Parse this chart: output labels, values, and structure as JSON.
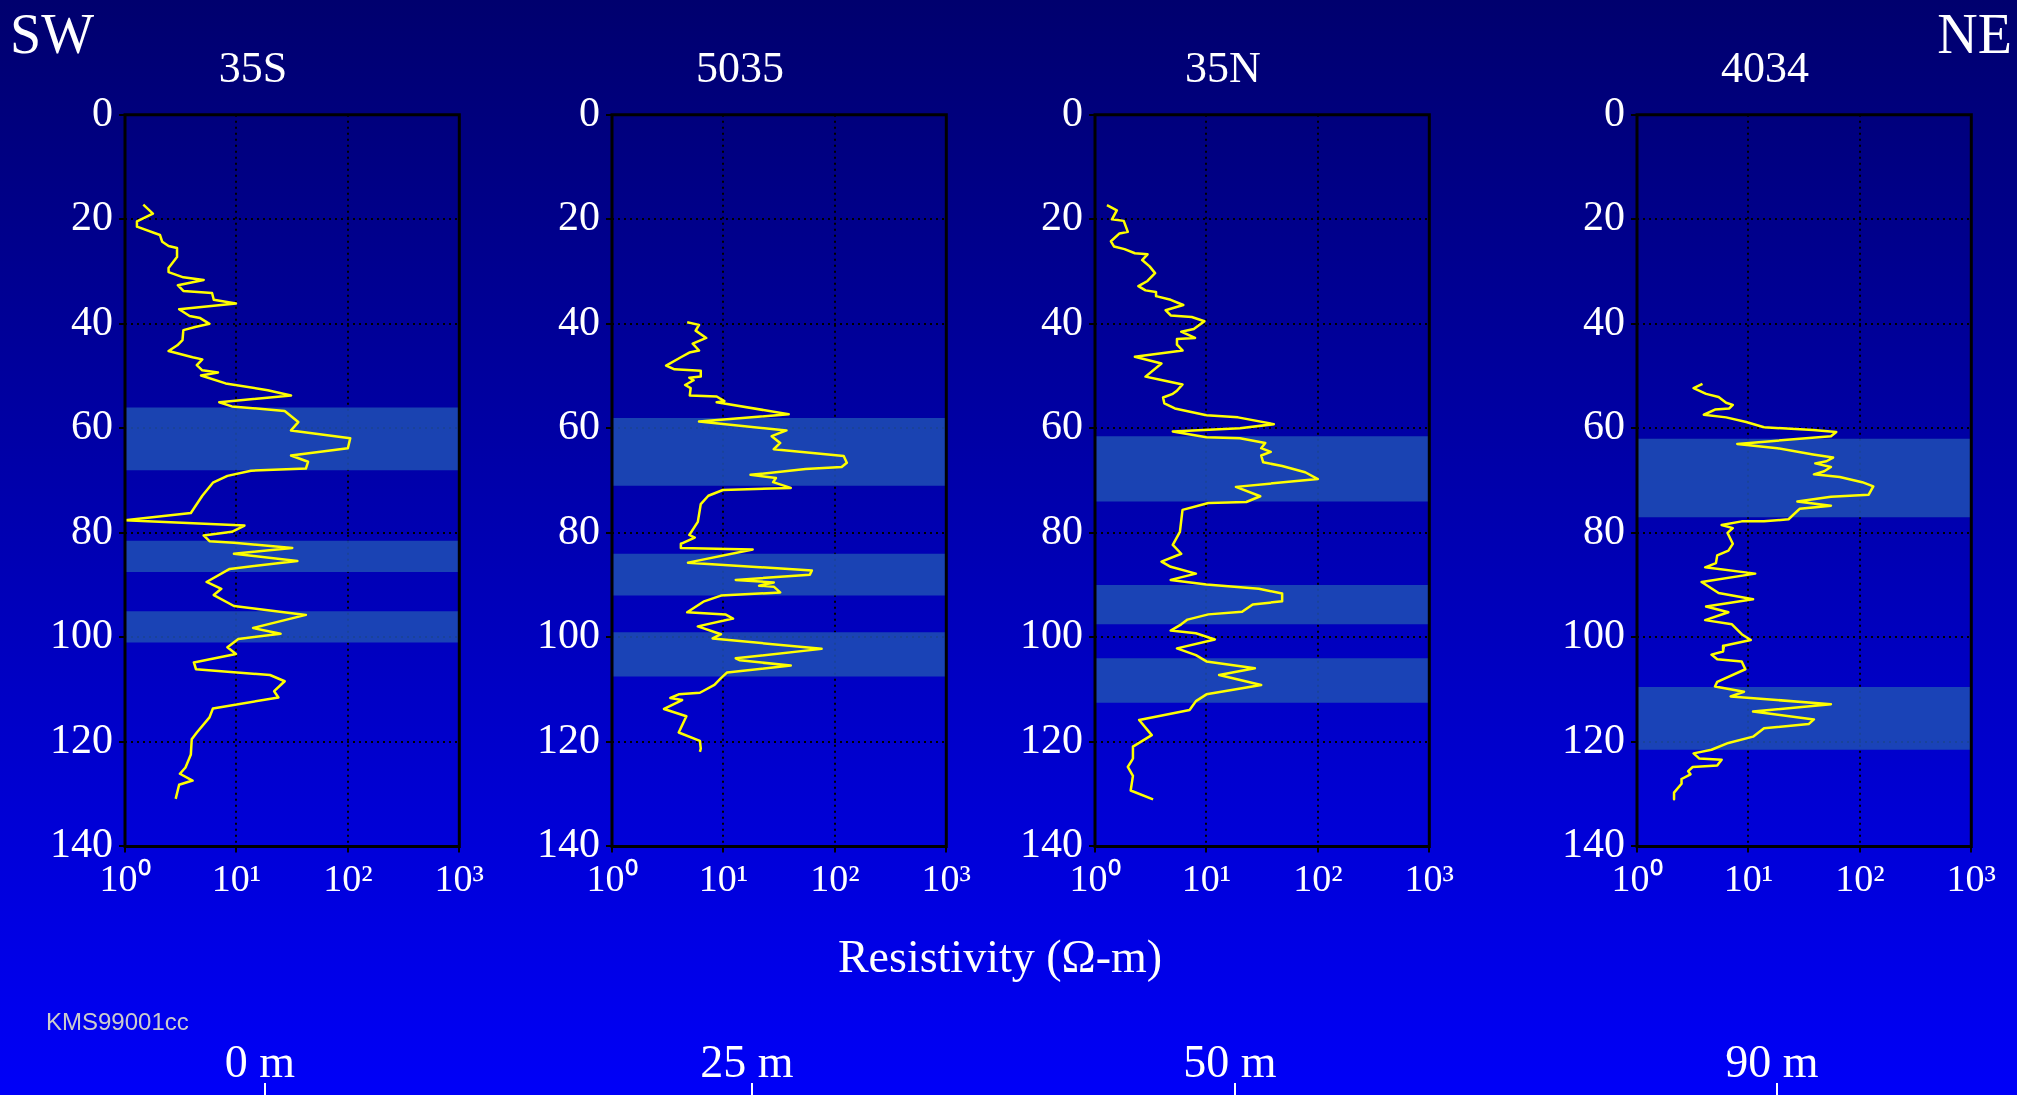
{
  "chart_data": [
    {
      "type": "line",
      "title": "35S",
      "xlim": [
        1,
        1000
      ],
      "xticks": [
        {
          "value": 1,
          "label": "10⁰"
        },
        {
          "value": 10,
          "label": "10¹"
        },
        {
          "value": 100,
          "label": "10²"
        },
        {
          "value": 1000,
          "label": "10³"
        }
      ],
      "ylim": [
        140,
        0
      ],
      "yticks": [
        0,
        20,
        40,
        60,
        80,
        100,
        120,
        140
      ],
      "log": "x",
      "grid": true,
      "bands": [
        {
          "axis": "y",
          "from": 56,
          "to": 68,
          "color": "#1f4fb4"
        },
        {
          "axis": "y",
          "from": 81.5,
          "to": 87.5,
          "color": "#1f4fb4"
        },
        {
          "axis": "y",
          "from": 95,
          "to": 101,
          "color": "#1f4fb4"
        }
      ],
      "annotations": [
        "SW",
        "KMS99001cc",
        "0 m"
      ],
      "series": [
        {
          "color": "#ffff00",
          "x": [
            1.46,
            1.78,
            1.28,
            1.28,
            2.06,
            2.16,
            2.46,
            2.93,
            2.93,
            2.46,
            2.46,
            3.34,
            5.08,
            2.98,
            3.34,
            6.04,
            6.26,
            9.9,
            3.06,
            3.8,
            4.73,
            5.73,
            4.26,
            3.34,
            3.28,
            2.95,
            2.46,
            4.04,
            4.94,
            4.41,
            4.94,
            6.83,
            4.81,
            8.0,
            19.1,
            30.9,
            7.01,
            9.1,
            27.1,
            35.9,
            30.9,
            105,
            100,
            30.9,
            43.9,
            42,
            13.5,
            8.3,
            6.15,
            4.94,
            3.9,
            1,
            11.8,
            9.1,
            5.08,
            5.73,
            9.5,
            31.7,
            9.5,
            35.2,
            8.7,
            5.39,
            7.32,
            6.26,
            9.5,
            42,
            14.1,
            24.9,
            10.4,
            8.3,
            9.9,
            4.15,
            4.34,
            20,
            27.1,
            21.8,
            23.8,
            6.15,
            5.73,
            4.41,
            3.97,
            3.9,
            3.49,
            3.11,
            4.04,
            3.06,
            2.85
          ],
          "values": [
            17.2,
            18.9,
            20.4,
            21.4,
            23.0,
            24.3,
            25.1,
            25.5,
            27.2,
            29.3,
            30.1,
            31.1,
            31.6,
            32.6,
            33.7,
            34.1,
            35.4,
            36.1,
            37.2,
            38.5,
            38.9,
            40.0,
            40.6,
            41.2,
            43.1,
            44.1,
            45.2,
            46.4,
            46.8,
            47.9,
            48.9,
            49.3,
            49.9,
            51.4,
            52.7,
            53.7,
            55.0,
            55.8,
            56.7,
            58.8,
            60.4,
            61.9,
            63.8,
            65.2,
            66.4,
            67.7,
            68.1,
            69.1,
            70.4,
            72.9,
            76.2,
            77.6,
            78.6,
            79.8,
            80.5,
            81.6,
            81.9,
            82.9,
            84.0,
            85.4,
            86.9,
            89.4,
            90.7,
            91.9,
            94.0,
            95.7,
            98.2,
            99.3,
            100.3,
            101.9,
            103.2,
            104.8,
            106.1,
            107.2,
            108.4,
            110.3,
            111.5,
            113.6,
            115.3,
            118.2,
            119.5,
            122.4,
            124.9,
            126.1,
            127.4,
            128.2,
            130.9
          ]
        }
      ]
    },
    {
      "type": "line",
      "title": "5035",
      "xlabel": "Resistivity (Ω-m)",
      "xlim": [
        1,
        1000
      ],
      "xticks": [
        {
          "value": 1,
          "label": "10⁰"
        },
        {
          "value": 10,
          "label": "10¹"
        },
        {
          "value": 100,
          "label": "10²"
        },
        {
          "value": 1000,
          "label": "10³"
        }
      ],
      "ylim": [
        140,
        0
      ],
      "yticks": [
        0,
        20,
        40,
        60,
        80,
        100,
        120,
        140
      ],
      "log": "x",
      "grid": true,
      "bands": [
        {
          "axis": "y",
          "from": 58,
          "to": 71,
          "color": "#1f4fb4"
        },
        {
          "axis": "y",
          "from": 84,
          "to": 92,
          "color": "#1f4fb4"
        },
        {
          "axis": "y",
          "from": 99,
          "to": 107.5,
          "color": "#1f4fb4"
        }
      ],
      "annotations": [
        "25 m"
      ],
      "series": [
        {
          "color": "#ffff00",
          "x": [
            4.73,
            6.04,
            5.63,
            7.01,
            5.3,
            6.04,
            4.94,
            4.15,
            3.06,
            3.64,
            6.26,
            6.26,
            4.94,
            5.4,
            4.53,
            5.08,
            4.99,
            8.7,
            10.2,
            8.7,
            38.5,
            6.04,
            36.8,
            27.1,
            32.3,
            28.3,
            120,
            128,
            115,
            54.6,
            17.5,
            29.6,
            27.9,
            40.2,
            9.9,
            7.32,
            6.26,
            5.89,
            4.94,
            5.53,
            4.15,
            4.15,
            18.3,
            4.81,
            62.2,
            59.6,
            12.9,
            28.3,
            20.9,
            28.3,
            32.3,
            9.5,
            6.71,
            4.73,
            10.4,
            12.2,
            5.89,
            9.5,
            8.0,
            76,
            12.9,
            14.1,
            40.2,
            10.8,
            9.5,
            8.3,
            6.15,
            3.97,
            3.34,
            4.26,
            2.93,
            4.65,
            3.97,
            6.15,
            6.26,
            6.15
          ],
          "values": [
            39.7,
            40.2,
            41.3,
            42.7,
            43.8,
            45.1,
            45.5,
            46.4,
            48.0,
            48.7,
            49.0,
            50.1,
            50.3,
            50.8,
            51.7,
            52.3,
            53.7,
            53.9,
            54.8,
            55.0,
            57.3,
            58.7,
            60.4,
            61.5,
            62.8,
            64.0,
            65.3,
            66.6,
            67.4,
            67.8,
            68.9,
            69.5,
            70.3,
            71.4,
            71.8,
            72.9,
            74.5,
            77.9,
            80.4,
            80.9,
            82.1,
            82.9,
            83.2,
            85.7,
            87.2,
            88.0,
            89.0,
            89.5,
            90.1,
            90.3,
            91.4,
            92.0,
            93.1,
            95.2,
            95.6,
            96.4,
            97.9,
            99.4,
            100.2,
            102.2,
            104.0,
            104.4,
            105.4,
            106.7,
            107.8,
            109.1,
            110.6,
            110.9,
            111.6,
            112.0,
            113.7,
            115.1,
            118.2,
            119.8,
            121.3,
            121.9
          ]
        }
      ]
    },
    {
      "type": "line",
      "title": "35N",
      "xlim": [
        1,
        1000
      ],
      "xticks": [
        {
          "value": 1,
          "label": "10⁰"
        },
        {
          "value": 10,
          "label": "10¹"
        },
        {
          "value": 100,
          "label": "10²"
        },
        {
          "value": 1000,
          "label": "10³"
        }
      ],
      "ylim": [
        140,
        0
      ],
      "yticks": [
        0,
        20,
        40,
        60,
        80,
        100,
        120,
        140
      ],
      "log": "x",
      "grid": true,
      "bands": [
        {
          "axis": "y",
          "from": 61.5,
          "to": 74,
          "color": "#1f4fb4"
        },
        {
          "axis": "y",
          "from": 90,
          "to": 97.5,
          "color": "#1f4fb4"
        },
        {
          "axis": "y",
          "from": 104,
          "to": 112.5,
          "color": "#1f4fb4"
        }
      ],
      "annotations": [
        "50 m"
      ],
      "series": [
        {
          "color": "#ffff00",
          "x": [
            1.28,
            1.57,
            1.42,
            1.81,
            1.97,
            1.66,
            1.39,
            1.48,
            1.84,
            2.28,
            2.96,
            2.65,
            3.09,
            3.46,
            2.96,
            2.45,
            2.84,
            3.53,
            3.53,
            4.78,
            6.2,
            4.3,
            4.78,
            7.38,
            9.6,
            7.7,
            5.94,
            7.9,
            5.44,
            5.44,
            6.1,
            2.28,
            3.95,
            2.84,
            3.85,
            6.1,
            5.44,
            4.99,
            4.08,
            4.19,
            5.21,
            10.0,
            19.2,
            40.2,
            20,
            4.99,
            10.0,
            20,
            33.7,
            31,
            37.8,
            31,
            32.3,
            47.8,
            77,
            100,
            18.4,
            30.4,
            22.8,
            10.4,
            6.1,
            5.78,
            4.99,
            5.94,
            3.95,
            4.78,
            8.05,
            4.78,
            10.0,
            29.6,
            47.8,
            47.8,
            26,
            20.9,
            10.4,
            6.76,
            5.94,
            4.78,
            8.05,
            11.9,
            5.44,
            8.05,
            10.0,
            27.2,
            13,
            31,
            10.0,
            8.05,
            7.06,
            2.49,
            3.23,
            2.19,
            2.19,
            1.97,
            2.19,
            2.09,
            3.32
          ],
          "values": [
            17.3,
            18.3,
            20.0,
            20.3,
            22.4,
            22.7,
            24.2,
            25.2,
            25.7,
            26.5,
            26.7,
            27.8,
            29.0,
            30.3,
            31.8,
            32.8,
            33.6,
            33.9,
            34.7,
            35.4,
            36.4,
            37.4,
            38.4,
            38.7,
            39.5,
            41.0,
            41.5,
            42.7,
            42.9,
            44.0,
            45.1,
            46.3,
            47.6,
            50.1,
            50.7,
            51.6,
            52.8,
            53.4,
            54.1,
            55.2,
            56.2,
            57.5,
            57.9,
            59.2,
            60.0,
            60.6,
            61.7,
            61.9,
            62.8,
            63.8,
            64.5,
            65.2,
            66.5,
            67.2,
            68.4,
            69.7,
            71.2,
            73.0,
            74.1,
            74.3,
            75.6,
            79.8,
            82.3,
            84.0,
            85.5,
            86.5,
            87.8,
            89.0,
            89.9,
            90.7,
            91.6,
            93.1,
            93.7,
            95.1,
            95.6,
            96.6,
            97.5,
            98.7,
            99.2,
            100.4,
            102.1,
            103.4,
            104.6,
            105.9,
            107.2,
            109.1,
            110.9,
            112.2,
            113.9,
            115.8,
            118.7,
            120.9,
            123.2,
            124.8,
            126.5,
            129.3,
            131.0
          ]
        }
      ]
    },
    {
      "type": "line",
      "title": "4034",
      "xlim": [
        1,
        1000
      ],
      "xticks": [
        {
          "value": 1,
          "label": "10⁰"
        },
        {
          "value": 10,
          "label": "10¹"
        },
        {
          "value": 100,
          "label": "10²"
        },
        {
          "value": 1000,
          "label": "10³"
        }
      ],
      "ylim": [
        140,
        0
      ],
      "yticks": [
        0,
        20,
        40,
        60,
        80,
        100,
        120,
        140
      ],
      "log": "x",
      "grid": true,
      "bands": [
        {
          "axis": "y",
          "from": 62,
          "to": 77,
          "color": "#1f4fb4"
        },
        {
          "axis": "y",
          "from": 109.5,
          "to": 121.5,
          "color": "#1f4fb4"
        }
      ],
      "annotations": [
        "NE",
        "90 m"
      ],
      "series": [
        {
          "color": "#ffff00",
          "x": [
            3.87,
            3.22,
            4.17,
            5.4,
            6.31,
            7.24,
            6.73,
            5.01,
            3.98,
            6.31,
            9.55,
            13.8,
            38,
            61.4,
            55,
            7.94,
            18.2,
            38,
            57.5,
            50.1,
            39.8,
            55,
            47.9,
            38.7,
            66,
            105,
            132,
            120,
            55,
            27.5,
            55,
            28.8,
            22.9,
            13.8,
            8.7,
            5.75,
            7.24,
            6.49,
            7.24,
            6.61,
            5.25,
            5.11,
            4.09,
            11.5,
            3.8,
            5.4,
            11.0,
            4.17,
            6.61,
            4.09,
            7.11,
            8.7,
            10.5,
            6.03,
            5.92,
            4.66,
            5.25,
            8.7,
            9.38,
            5.25,
            5.01,
            9.12,
            6.92,
            55,
            11.0,
            38.7,
            34.7,
            13.8,
            11.0,
            6.61,
            4.66,
            3.22,
            3.63,
            5.75,
            5.25,
            3.16,
            2.88,
            3.02,
            2.51,
            2.51,
            2.15,
            2.15
          ],
          "values": [
            51.5,
            52.3,
            53.4,
            54.0,
            55.1,
            55.5,
            56.2,
            56.4,
            57.4,
            57.9,
            58.8,
            59.8,
            60.3,
            60.7,
            61.5,
            63.0,
            63.8,
            65.0,
            65.6,
            66.3,
            66.7,
            67.4,
            68.2,
            68.8,
            69.3,
            70.3,
            71.1,
            72.7,
            73.1,
            74.0,
            74.8,
            75.4,
            77.4,
            77.8,
            77.8,
            78.5,
            79.1,
            80.0,
            82.1,
            83.4,
            84.3,
            85.8,
            86.6,
            87.8,
            89.4,
            91.5,
            92.7,
            94.1,
            95.2,
            96.7,
            97.5,
            99.4,
            100.5,
            101.6,
            102.7,
            103.3,
            104.2,
            104.6,
            106.1,
            108.5,
            109.4,
            110.4,
            111.3,
            112.8,
            114.2,
            115.7,
            116.6,
            117.4,
            119.0,
            120.2,
            121.5,
            122.2,
            123.2,
            123.4,
            124.5,
            124.8,
            125.6,
            126.2,
            127.1,
            128.0,
            129.7,
            131.0
          ]
        }
      ]
    }
  ]
}
